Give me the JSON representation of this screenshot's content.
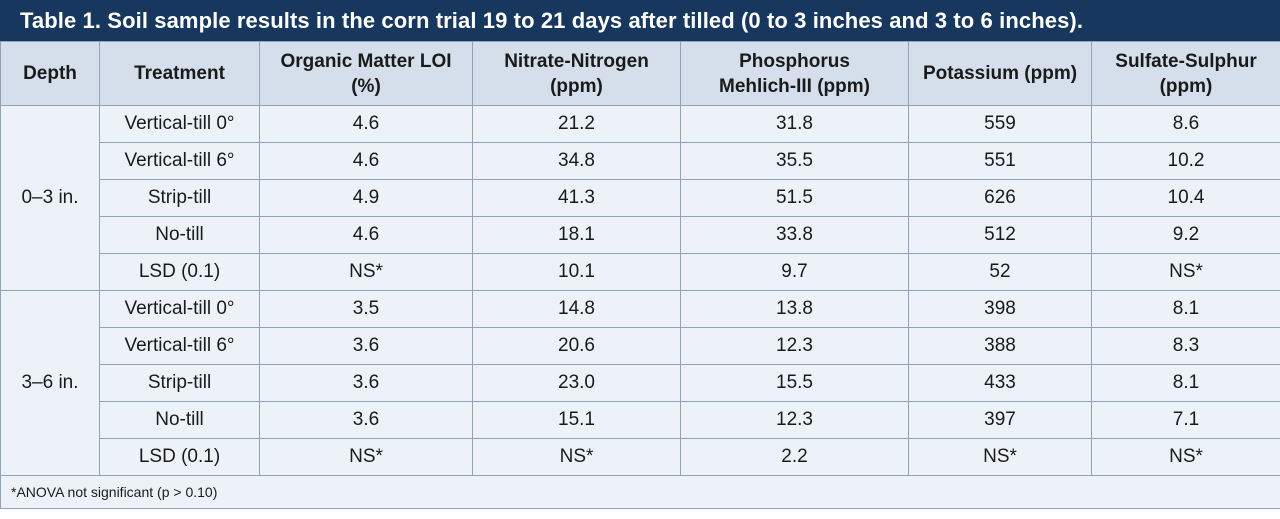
{
  "title": "Table 1. Soil sample results in the corn trial 19 to 21 days after tilled (0 to 3 inches and 3 to 6 inches).",
  "headers": {
    "depth": [
      "Depth"
    ],
    "treatment": [
      "Treatment"
    ],
    "om": [
      "Organic Matter LOI",
      "(%)"
    ],
    "nitrate": [
      "Nitrate-Nitrogen",
      "(ppm)"
    ],
    "phosphorus": [
      "Phosphorus",
      "Mehlich-III (ppm)"
    ],
    "potassium": [
      "Potassium (ppm)"
    ],
    "sulfate": [
      "Sulfate-Sulphur",
      "(ppm)"
    ]
  },
  "groups": [
    {
      "depth": "0–3 in.",
      "rows": [
        {
          "treatment": "Vertical-till 0°",
          "om": "4.6",
          "nitrate": "21.2",
          "phosphorus": "31.8",
          "potassium": "559",
          "sulfate": "8.6"
        },
        {
          "treatment": "Vertical-till 6°",
          "om": "4.6",
          "nitrate": "34.8",
          "phosphorus": "35.5",
          "potassium": "551",
          "sulfate": "10.2"
        },
        {
          "treatment": "Strip-till",
          "om": "4.9",
          "nitrate": "41.3",
          "phosphorus": "51.5",
          "potassium": "626",
          "sulfate": "10.4"
        },
        {
          "treatment": "No-till",
          "om": "4.6",
          "nitrate": "18.1",
          "phosphorus": "33.8",
          "potassium": "512",
          "sulfate": "9.2"
        },
        {
          "treatment": "LSD (0.1)",
          "om": "NS*",
          "nitrate": "10.1",
          "phosphorus": "9.7",
          "potassium": "52",
          "sulfate": "NS*"
        }
      ]
    },
    {
      "depth": "3–6 in.",
      "rows": [
        {
          "treatment": "Vertical-till 0°",
          "om": "3.5",
          "nitrate": "14.8",
          "phosphorus": "13.8",
          "potassium": "398",
          "sulfate": "8.1"
        },
        {
          "treatment": "Vertical-till 6°",
          "om": "3.6",
          "nitrate": "20.6",
          "phosphorus": "12.3",
          "potassium": "388",
          "sulfate": "8.3"
        },
        {
          "treatment": "Strip-till",
          "om": "3.6",
          "nitrate": "23.0",
          "phosphorus": "15.5",
          "potassium": "433",
          "sulfate": "8.1"
        },
        {
          "treatment": "No-till",
          "om": "3.6",
          "nitrate": "15.1",
          "phosphorus": "12.3",
          "potassium": "397",
          "sulfate": "7.1"
        },
        {
          "treatment": "LSD (0.1)",
          "om": "NS*",
          "nitrate": "NS*",
          "phosphorus": "2.2",
          "potassium": "NS*",
          "sulfate": "NS*"
        }
      ]
    }
  ],
  "footnote": "*ANOVA not significant (p > 0.10)",
  "colors": {
    "title_bg": "#17375e",
    "header_bg": "#d5dfeb",
    "cell_bg": "#edf2f8",
    "border": "#8fa3bc"
  }
}
